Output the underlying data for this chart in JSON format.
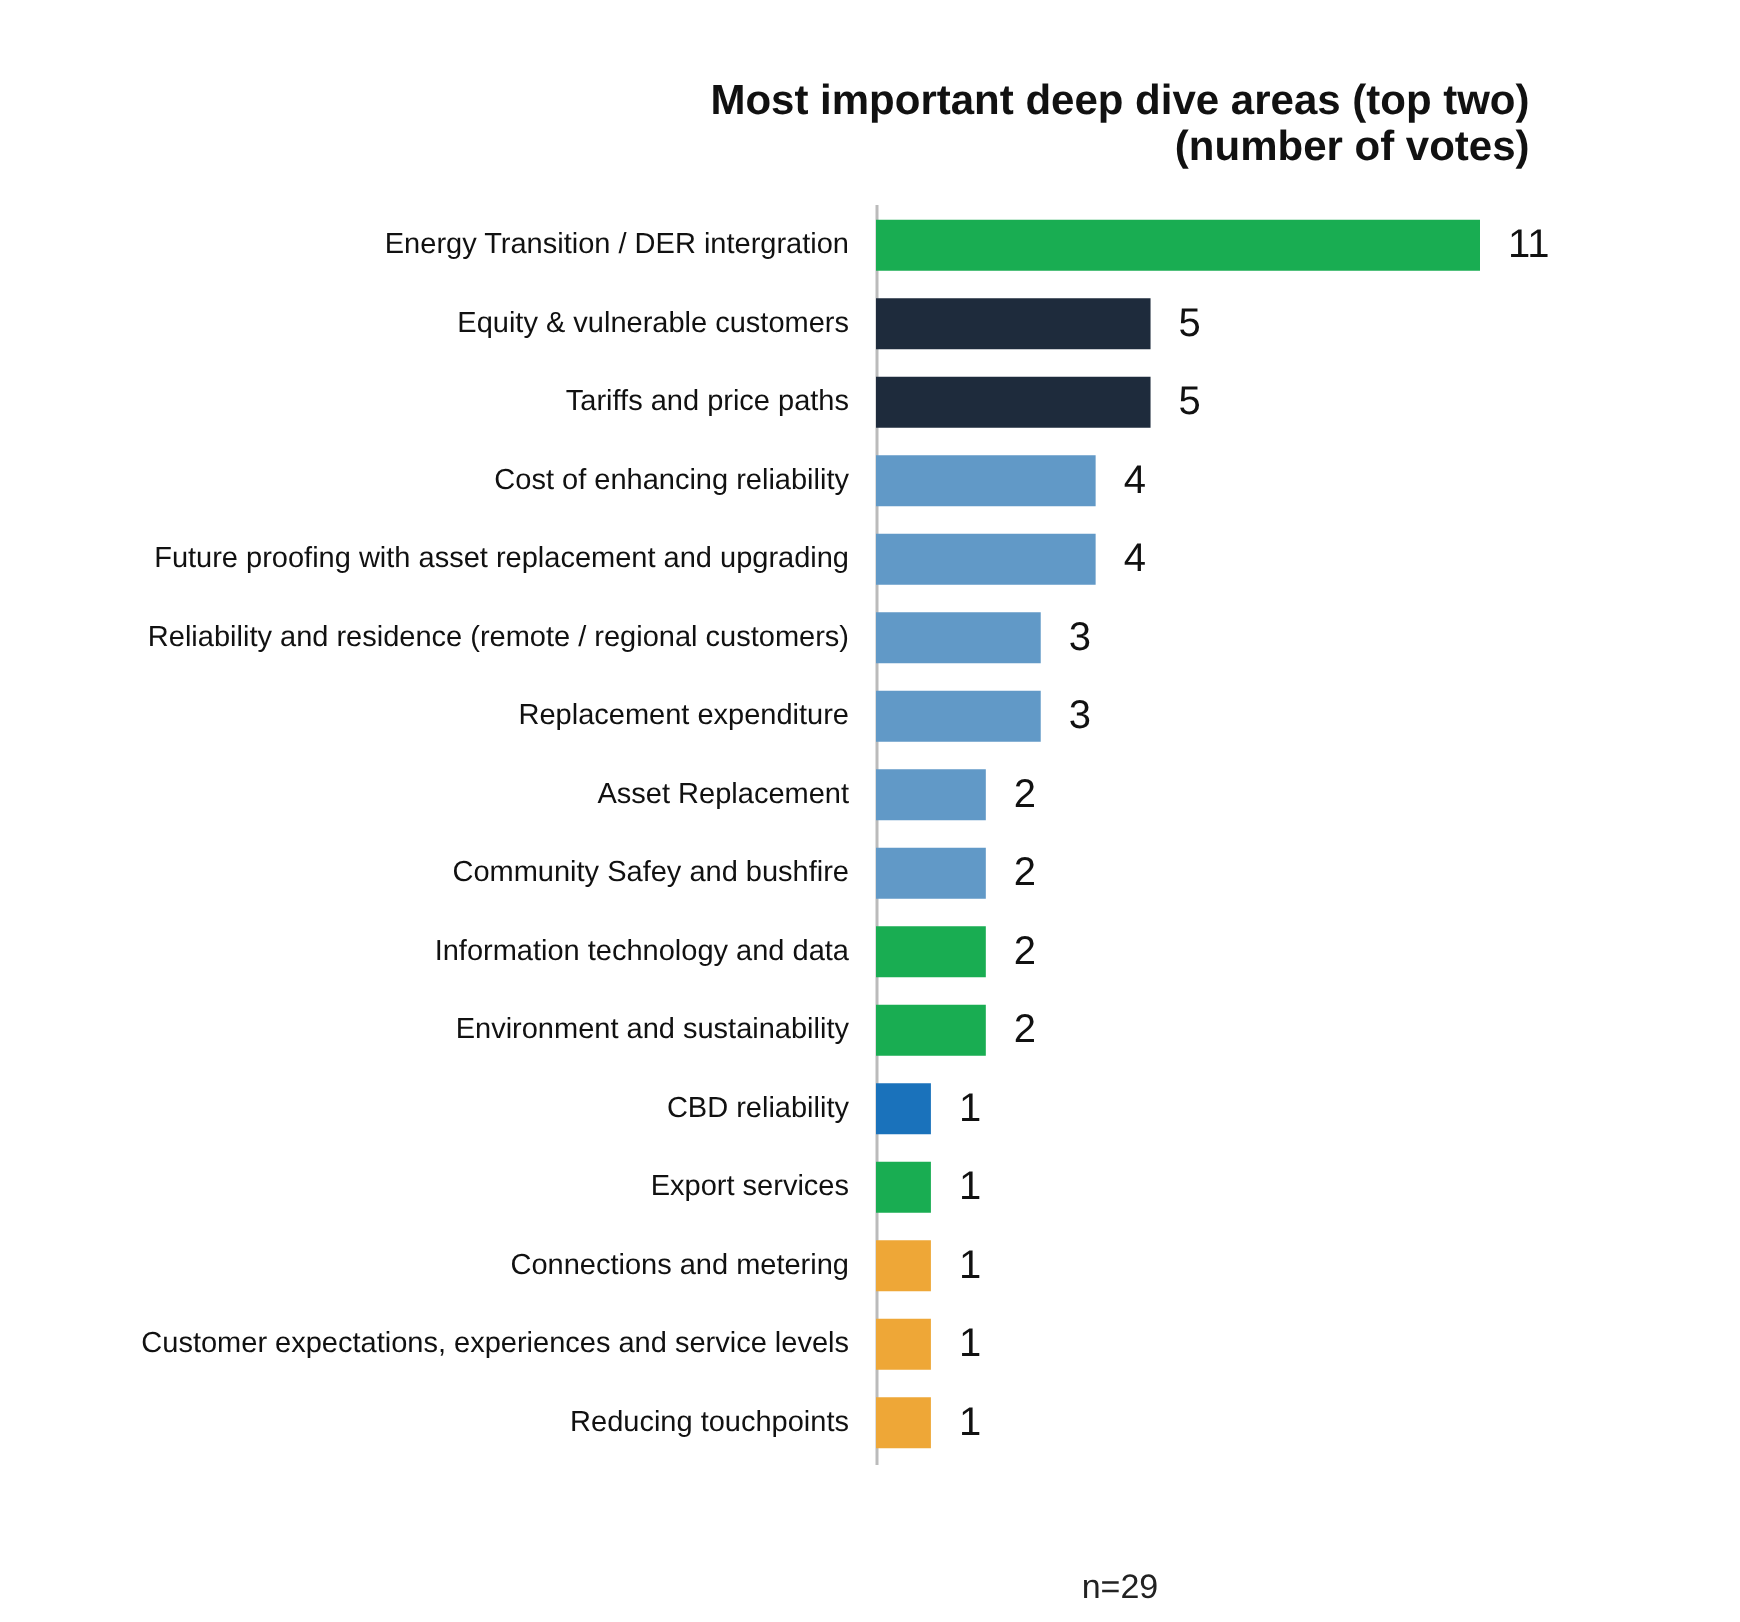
{
  "chart_data": {
    "type": "bar",
    "orientation": "horizontal",
    "title": "Most important deep dive areas (top two)\n(number of votes)",
    "categories": [
      "Energy Transition /  DER intergration",
      "Equity & vulnerable customers",
      "Tariffs and price paths",
      "Cost of enhancing reliability",
      "Future proofing with asset replacement and upgrading",
      "Reliability and residence (remote / regional customers)",
      "Replacement expenditure",
      "Asset Replacement",
      "Community Safey and bushfire",
      "Information technology and data",
      "Environment and sustainability",
      "CBD reliability",
      "Export services",
      "Connections and metering",
      "Customer expectations, experiences and service levels",
      "Reducing touchpoints"
    ],
    "values": [
      11,
      5,
      5,
      4,
      4,
      3,
      3,
      2,
      2,
      2,
      2,
      1,
      1,
      1,
      1,
      1
    ],
    "colors": [
      "#19ad52",
      "#1e2b3c",
      "#1e2b3c",
      "#6199c7",
      "#6199c7",
      "#6199c7",
      "#6199c7",
      "#6199c7",
      "#6199c7",
      "#19ad52",
      "#19ad52",
      "#1a72bb",
      "#19ad52",
      "#eea737",
      "#eea737",
      "#eea737"
    ],
    "data_labels": true,
    "grid": false,
    "annotations": [
      "n=29"
    ]
  }
}
